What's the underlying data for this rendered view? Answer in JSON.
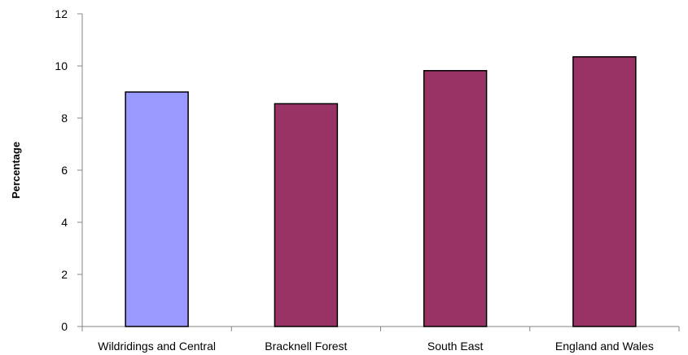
{
  "chart_data": {
    "type": "bar",
    "title": "",
    "xlabel": "",
    "ylabel": "Percentage",
    "ylim": [
      0,
      12
    ],
    "yticks": [
      0,
      2,
      4,
      6,
      8,
      10,
      12
    ],
    "grid": false,
    "categories": [
      "Wildridings and Central",
      "Bracknell Forest",
      "South East",
      "England and Wales"
    ],
    "values": [
      9.0,
      8.55,
      9.82,
      10.35
    ],
    "bar_colors": [
      "#9999ff",
      "#993366",
      "#993366",
      "#993366"
    ],
    "bar_edge_color": "#000000"
  }
}
